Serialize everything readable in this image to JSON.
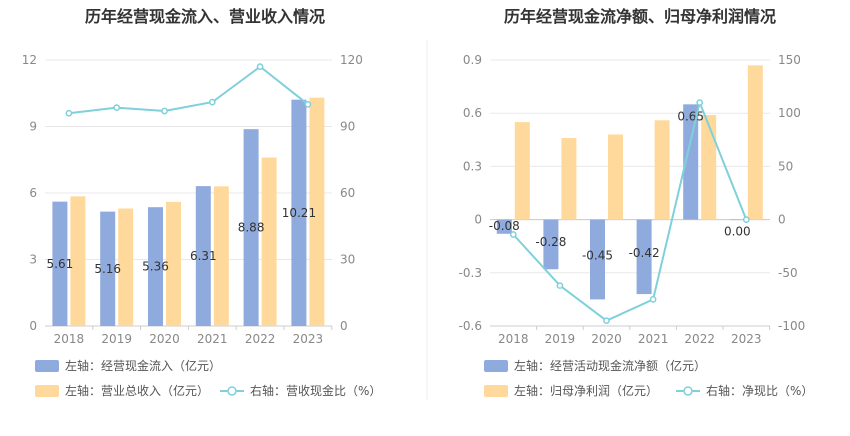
{
  "colors": {
    "blue": "#8faadc",
    "orange": "#ffd99b",
    "line": "#7fd0db"
  },
  "charts": {
    "left": {
      "title": "历年经营现金流入、营业收入情况",
      "legend": [
        {
          "label": "左轴：经营现金流入（亿元）",
          "icon": "bar-swatch-icon"
        },
        {
          "label": "左轴：营业总收入（亿元）",
          "icon": "bar-swatch-icon"
        },
        {
          "label": "右轴：营收现金比（%）",
          "icon": "line-marker-icon"
        }
      ]
    },
    "right": {
      "title": "历年经营现金流净额、归母净利润情况",
      "legend": [
        {
          "label": "左轴：经营活动现金流净额（亿元）",
          "icon": "bar-swatch-icon"
        },
        {
          "label": "左轴：归母净利润（亿元）",
          "icon": "bar-swatch-icon"
        },
        {
          "label": "右轴：净现比（%）",
          "icon": "line-marker-icon"
        }
      ]
    }
  },
  "chart_data": [
    {
      "type": "bar",
      "title": "历年经营现金流入、营业收入情况",
      "categories": [
        "2018",
        "2019",
        "2020",
        "2021",
        "2022",
        "2023"
      ],
      "series": [
        {
          "name": "左轴：经营现金流入（亿元）",
          "axis": "left",
          "type": "bar",
          "values": [
            5.61,
            5.16,
            5.36,
            6.31,
            8.88,
            10.21
          ],
          "labels": [
            "5.61",
            "5.16",
            "5.36",
            "6.31",
            "8.88",
            "10.21"
          ]
        },
        {
          "name": "左轴：营业总收入（亿元）",
          "axis": "left",
          "type": "bar",
          "values": [
            5.85,
            5.3,
            5.6,
            6.3,
            7.6,
            10.3
          ]
        },
        {
          "name": "右轴：营收现金比（%）",
          "axis": "right",
          "type": "line",
          "values": [
            96,
            98.5,
            97,
            101,
            117,
            100
          ]
        }
      ],
      "yleft": {
        "min": 0,
        "max": 12,
        "ticks": [
          "0",
          "3",
          "6",
          "9",
          "12"
        ]
      },
      "yright": {
        "min": 0,
        "max": 120,
        "ticks": [
          "0",
          "30",
          "60",
          "90",
          "120"
        ]
      },
      "grid": true,
      "legend_position": "bottom-left"
    },
    {
      "type": "bar",
      "title": "历年经营现金流净额、归母净利润情况",
      "categories": [
        "2018",
        "2019",
        "2020",
        "2021",
        "2022",
        "2023"
      ],
      "series": [
        {
          "name": "左轴：经营活动现金流净额（亿元）",
          "axis": "left",
          "type": "bar",
          "values": [
            -0.08,
            -0.28,
            -0.45,
            -0.42,
            0.65,
            0.0
          ],
          "labels": [
            "-0.08",
            "-0.28",
            "-0.45",
            "-0.42",
            "0.65",
            "0.00"
          ]
        },
        {
          "name": "左轴：归母净利润（亿元）",
          "axis": "left",
          "type": "bar",
          "values": [
            0.55,
            0.46,
            0.48,
            0.56,
            0.59,
            0.87
          ]
        },
        {
          "name": "右轴：净现比（%）",
          "axis": "right",
          "type": "line",
          "values": [
            -14,
            -62,
            -95,
            -75,
            110,
            0
          ]
        }
      ],
      "yleft": {
        "min": -0.6,
        "max": 0.9,
        "ticks": [
          "-0.6",
          "-0.3",
          "0",
          "0.3",
          "0.6",
          "0.9"
        ]
      },
      "yright": {
        "min": -100,
        "max": 150,
        "ticks": [
          "-100",
          "-50",
          "0",
          "50",
          "100",
          "150"
        ]
      },
      "grid": true,
      "legend_position": "bottom-left"
    }
  ]
}
